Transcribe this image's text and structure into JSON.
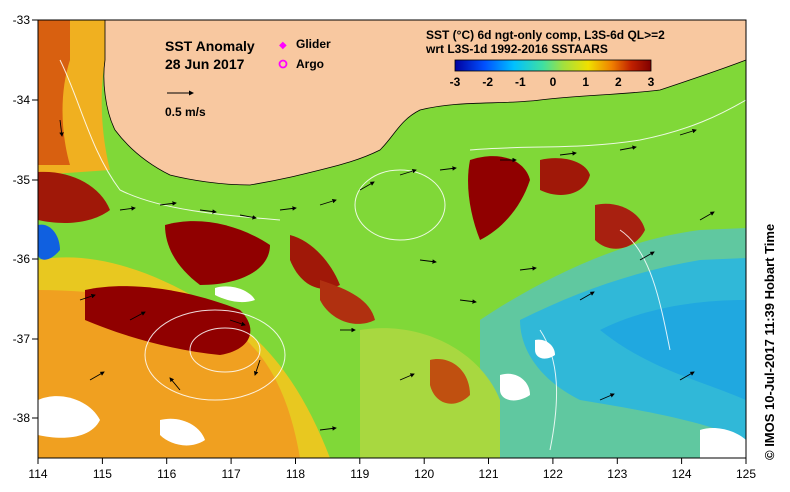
{
  "map": {
    "title": "SST Anomaly",
    "date": "28 Jun 2017",
    "scale_label": "0.5 m/s",
    "legend": {
      "glider": "Glider",
      "argo": "Argo",
      "glider_color": "#ff00ff",
      "argo_color": "#ff00ff"
    },
    "colorbar": {
      "line1": "SST (°C) 6d ngt-only comp, L3S-6d QL>=2",
      "line2": "wrt L3S-1d 1992-2016 SSTAARS",
      "ticks": [
        "-3",
        "-2",
        "-1",
        "0",
        "1",
        "2",
        "3"
      ],
      "colors": [
        "#0000a0",
        "#0050ff",
        "#00c0ff",
        "#40e0a0",
        "#a0e040",
        "#f0e000",
        "#f08000",
        "#c02000",
        "#800000"
      ]
    },
    "lon_ticks": [
      "114",
      "115",
      "116",
      "117",
      "118",
      "119",
      "120",
      "121",
      "122",
      "123",
      "124",
      "125"
    ],
    "lat_ticks": [
      "-33",
      "-34",
      "-35",
      "-36",
      "-37",
      "-38"
    ],
    "land_color": "#f8c8a0",
    "credit": "© IMOS 10-Jul-2017 11:39 Hobart Time"
  }
}
